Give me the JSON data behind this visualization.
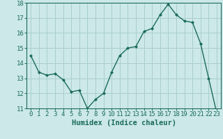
{
  "xlabel": "Humidex (Indice chaleur)",
  "x": [
    0,
    1,
    2,
    3,
    4,
    5,
    6,
    7,
    8,
    9,
    10,
    11,
    12,
    13,
    14,
    15,
    16,
    17,
    18,
    19,
    20,
    21,
    22,
    23
  ],
  "y": [
    14.5,
    13.4,
    13.2,
    13.3,
    12.9,
    12.1,
    12.2,
    11.0,
    11.6,
    12.0,
    13.4,
    14.5,
    15.0,
    15.1,
    16.1,
    16.3,
    17.2,
    17.9,
    17.2,
    16.8,
    16.7,
    15.3,
    13.0,
    10.7
  ],
  "ylim": [
    11,
    18
  ],
  "yticks": [
    11,
    12,
    13,
    14,
    15,
    16,
    17,
    18
  ],
  "xticks": [
    0,
    1,
    2,
    3,
    4,
    5,
    6,
    7,
    8,
    9,
    10,
    11,
    12,
    13,
    14,
    15,
    16,
    17,
    18,
    19,
    20,
    21,
    22,
    23
  ],
  "line_color": "#1a6b5a",
  "marker": "D",
  "marker_size": 2.0,
  "bg_color": "#cce8e8",
  "grid_color": "#aacece",
  "tick_label_fontsize": 6.5,
  "xlabel_fontsize": 7.5,
  "line_width": 1.0
}
